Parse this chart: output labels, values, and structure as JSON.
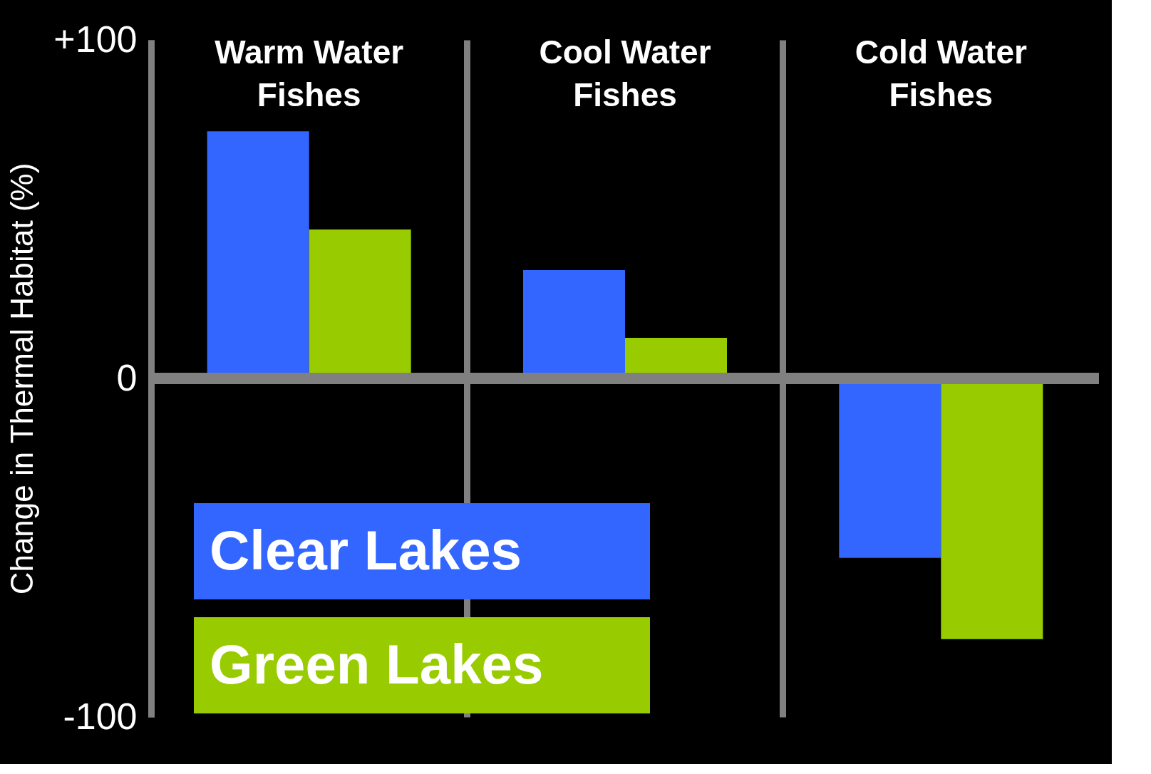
{
  "chart_data": {
    "type": "bar",
    "ylabel": "Change in Thermal Habitat (%)",
    "categories": [
      "Warm Water Fishes",
      "Cool Water Fishes",
      "Cold Water Fishes"
    ],
    "series": [
      {
        "name": "Clear Lakes",
        "color": "#3366ff",
        "values": [
          73,
          32,
          -53
        ]
      },
      {
        "name": "Green Lakes",
        "color": "#99cc00",
        "values": [
          44,
          12,
          -77
        ]
      }
    ],
    "ylim": [
      -100,
      100
    ],
    "yticks": [
      {
        "value": 100,
        "label": "+100"
      },
      0,
      -100
    ],
    "ref_lines": [
      {
        "axis": "y",
        "value": 0,
        "color": "#808080"
      }
    ],
    "grid": "x",
    "legend": "bottom left"
  }
}
